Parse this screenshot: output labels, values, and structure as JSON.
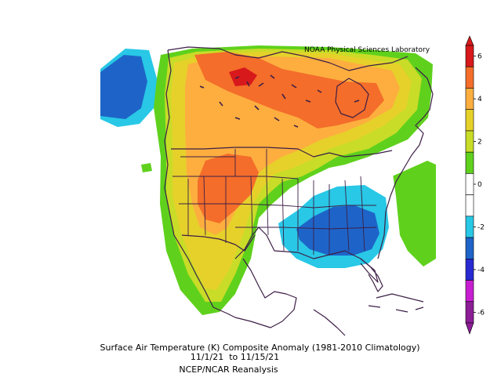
{
  "credit": "NOAA Physical Sciences Laboratory",
  "caption": {
    "line1": "Surface Air Temperature (K) Composite Anomaly (1981-2010 Climatology)",
    "line2": "11/1/21  to 11/15/21",
    "line3": "NCEP/NCAR Reanalysis"
  },
  "colorbar": {
    "ticks": [
      "6",
      "4",
      "2",
      "0",
      "-2",
      "-4",
      "-6"
    ],
    "bins": [
      "#d7191c",
      "#f46d2a",
      "#fdae3f",
      "#e6d12a",
      "#c8dc28",
      "#5fd11c",
      "#ffffff",
      "#ffffff",
      "#28c8e6",
      "#1e64c8",
      "#2a2ad2",
      "#c81ed2",
      "#8c1e96"
    ]
  },
  "colors": {
    "land_outline": "#3c1e46",
    "deep_red": "#d7191c",
    "orange": "#f46d2a",
    "light_orange": "#fdae3f",
    "yellow": "#e6d12a",
    "yellow_green": "#c8dc28",
    "green": "#5fd11c",
    "cyan": "#28c8e6",
    "blue": "#1e64c8"
  }
}
